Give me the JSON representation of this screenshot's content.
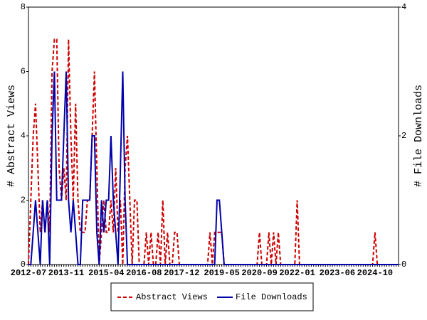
{
  "chart_data": {
    "type": "line",
    "y_label": "# Abstract Views",
    "y2_label": "# File Downloads",
    "categories": [
      "2012-07",
      null,
      null,
      null,
      null,
      null,
      null,
      null,
      null,
      null,
      null,
      null,
      null,
      null,
      null,
      null,
      "2013-11",
      null,
      null,
      null,
      null,
      null,
      null,
      null,
      null,
      null,
      null,
      null,
      null,
      null,
      null,
      null,
      null,
      "2015-04",
      null,
      null,
      null,
      null,
      null,
      null,
      null,
      null,
      null,
      null,
      null,
      null,
      null,
      null,
      null,
      "2016-08",
      null,
      null,
      null,
      null,
      null,
      null,
      null,
      null,
      null,
      null,
      null,
      null,
      null,
      null,
      null,
      "2017-12",
      null,
      null,
      null,
      null,
      null,
      null,
      null,
      null,
      null,
      null,
      null,
      null,
      null,
      null,
      null,
      null,
      "2019-05",
      null,
      null,
      null,
      null,
      null,
      null,
      null,
      null,
      null,
      null,
      null,
      null,
      null,
      null,
      null,
      "2020-09",
      null,
      null,
      null,
      null,
      null,
      null,
      null,
      null,
      null,
      null,
      null,
      null,
      null,
      null,
      null,
      "2022-01",
      null,
      null,
      null,
      null,
      null,
      null,
      null,
      null,
      null,
      null,
      null,
      null,
      null,
      null,
      null,
      null,
      "2023-06",
      null,
      null,
      null,
      null,
      null,
      null,
      null,
      null,
      null,
      null,
      null,
      null,
      null,
      null,
      null,
      "2024-10",
      null,
      null,
      null,
      null,
      null,
      null,
      null,
      null,
      null,
      null
    ],
    "series": [
      {
        "name": "Abstract Views",
        "color": "#cc0000",
        "dash": true,
        "values": [
          0,
          2,
          4,
          5,
          3,
          1,
          2,
          1,
          2,
          1,
          6,
          7,
          7,
          3,
          2,
          3,
          2,
          7,
          4,
          2,
          5,
          2,
          1,
          1,
          1,
          2,
          2,
          4,
          6,
          3,
          0,
          1,
          2,
          1,
          1,
          2,
          1,
          3,
          1,
          2,
          0,
          3,
          4,
          2,
          0,
          2,
          2,
          0,
          0,
          0,
          1,
          0,
          1,
          0,
          0,
          1,
          0,
          2,
          0,
          1,
          0,
          0,
          1,
          1,
          0,
          0,
          0,
          0,
          0,
          0,
          0,
          0,
          0,
          0,
          0,
          0,
          0,
          1,
          0,
          1,
          1,
          1,
          1,
          0,
          0,
          0,
          0,
          0,
          0,
          0,
          0,
          0,
          0,
          0,
          0,
          0,
          0,
          0,
          1,
          0,
          0,
          0,
          1,
          0,
          1,
          0,
          1,
          0,
          0,
          0,
          0,
          0,
          0,
          0,
          2,
          0,
          0,
          0,
          0,
          0,
          0,
          0,
          0,
          0,
          0,
          0,
          0,
          0,
          0,
          0,
          0,
          0,
          0,
          0,
          0,
          0,
          0,
          0,
          0,
          0,
          0,
          0,
          0,
          0,
          0,
          0,
          0,
          1,
          0,
          0,
          0,
          0,
          0,
          0,
          0,
          0,
          0,
          0
        ]
      },
      {
        "name": "File Downloads",
        "color": "#0000aa",
        "dash": false,
        "axis": "y2",
        "values": [
          0,
          0,
          0.5,
          1,
          0.5,
          0,
          1,
          0.5,
          1,
          0,
          2,
          3,
          1,
          1,
          1,
          2,
          3,
          1,
          0.5,
          1,
          0.5,
          0,
          0,
          1,
          1,
          1,
          1,
          2,
          2,
          0.5,
          0,
          1,
          0.5,
          1,
          1,
          2,
          1,
          0.5,
          0,
          1.5,
          3,
          1,
          0,
          0,
          0,
          0,
          0,
          0,
          0,
          0,
          0,
          0,
          0,
          0,
          0,
          0,
          0,
          0,
          0,
          0,
          0,
          0,
          0,
          0,
          0,
          0,
          0,
          0,
          0,
          0,
          0,
          0,
          0,
          0,
          0,
          0,
          0,
          0,
          0,
          0,
          1,
          1,
          0.5,
          0,
          0,
          0,
          0,
          0,
          0,
          0,
          0,
          0,
          0,
          0,
          0,
          0,
          0,
          0,
          0,
          0,
          0,
          0,
          0,
          0,
          0,
          0,
          0,
          0,
          0,
          0,
          0,
          0,
          0,
          0,
          0,
          0,
          0,
          0,
          0,
          0,
          0,
          0,
          0,
          0,
          0,
          0,
          0,
          0,
          0,
          0,
          0,
          0,
          0,
          0,
          0,
          0,
          0,
          0,
          0,
          0,
          0,
          0,
          0,
          0,
          0,
          0,
          0,
          0,
          0,
          0,
          0,
          0,
          0,
          0,
          0,
          0,
          0,
          0
        ]
      }
    ],
    "ylim": [
      0,
      8
    ],
    "yticks": [
      0,
      2,
      4,
      6,
      8
    ],
    "y2lim": [
      0,
      4
    ],
    "y2ticks": [
      0,
      2,
      4
    ]
  }
}
